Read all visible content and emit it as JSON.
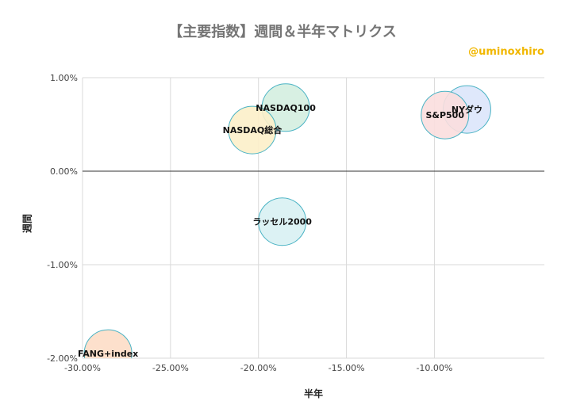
{
  "chart_data": {
    "type": "bubble",
    "title": "【主要指数】週間＆半年マトリクス",
    "watermark": "@uminoxhiro",
    "xlabel": "半年",
    "ylabel": "週間",
    "xlim": [
      -0.3,
      -0.0375
    ],
    "ylim": [
      -0.02,
      0.01
    ],
    "xticks": [
      -0.3,
      -0.25,
      -0.2,
      -0.15,
      -0.1
    ],
    "xtick_labels": [
      "-30.00%",
      "-25.00%",
      "-20.00%",
      "-15.00%",
      "-10.00%"
    ],
    "yticks": [
      0.01,
      0.0,
      -0.01,
      -0.02
    ],
    "ytick_labels": [
      "1.00%",
      "0.00%",
      "-1.00%",
      "-2.00%"
    ],
    "grid": true,
    "points": [
      {
        "name": "NASDAQ100",
        "x": -0.1845,
        "y": 0.0068,
        "fill": "#d4eee0",
        "stroke": "#4ab3c4"
      },
      {
        "name": "NASDAQ総合",
        "x": -0.2035,
        "y": 0.0044,
        "fill": "#fcefc9",
        "stroke": "#4ab3c4"
      },
      {
        "name": "NYダウ",
        "x": -0.0815,
        "y": 0.0066,
        "fill": "#dbe6fb",
        "stroke": "#4ab3c4"
      },
      {
        "name": "S&P500",
        "x": -0.094,
        "y": 0.006,
        "fill": "#fbdede",
        "stroke": "#4ab3c4"
      },
      {
        "name": "ラッセル2000",
        "x": -0.1865,
        "y": -0.0054,
        "fill": "#d8f1f3",
        "stroke": "#4ab3c4"
      },
      {
        "name": "FANG+index",
        "x": -0.2855,
        "y": -0.0195,
        "fill": "#fdddc6",
        "stroke": "#4ab3c4"
      }
    ]
  }
}
